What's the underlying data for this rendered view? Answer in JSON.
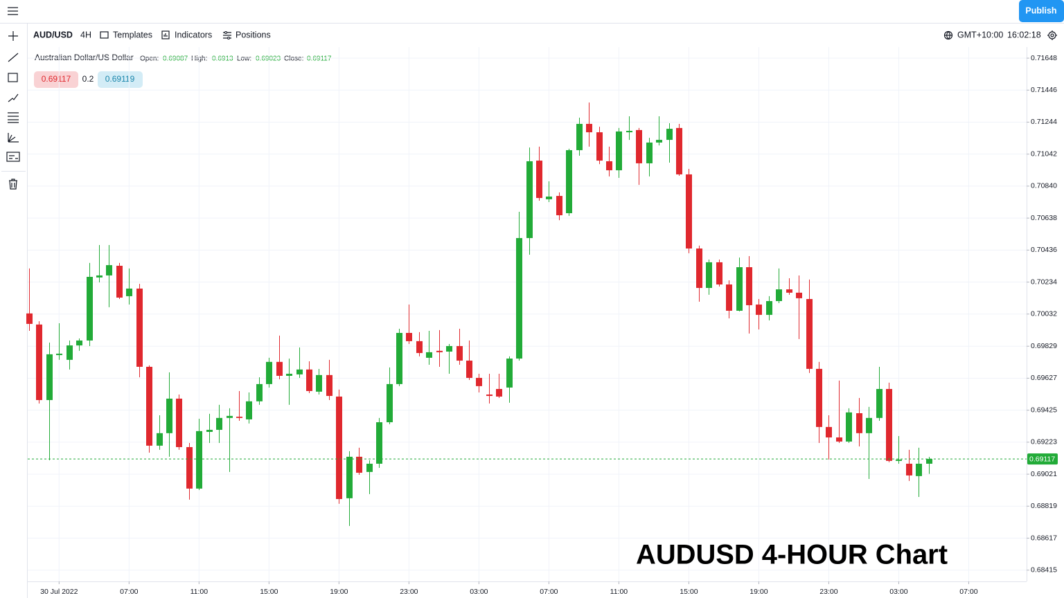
{
  "toolbar": {
    "publish": "Publish",
    "symbol": "AUD/USD",
    "interval": "4H",
    "templates": "Templates",
    "indicators": "Indicators",
    "positions": "Positions",
    "timezone": "GMT+10:00",
    "clock": "16:02:18"
  },
  "chart_data": {
    "type": "candlestick",
    "symbol_name": "Australian Dollar/US Dollar",
    "ohlc_labels": [
      "Open:",
      "High:",
      "Low:",
      "Close:"
    ],
    "bid": 0.69117,
    "spread": 0.2,
    "ask": 0.69119,
    "annotation": "AUDUSD 4-HOUR Chart",
    "up_color": "#22ab38",
    "down_color": "#e0282e",
    "grid": true,
    "ylim": [
      0.68344,
      0.71718
    ],
    "yticks": [
      0.71648,
      0.71446,
      0.71244,
      0.71042,
      {
        "value": 0.7084,
        "label": "0.70840"
      },
      0.70638,
      0.70436,
      0.70234,
      0.70032,
      0.69829,
      0.69627,
      0.69425,
      0.69223,
      0.69021,
      0.68819,
      0.68617,
      0.68415
    ],
    "xlim": [
      -0.14,
      99.79
    ],
    "xticks": [
      {
        "value": 3,
        "label": "30 Jul 2022"
      },
      {
        "value": 10,
        "label": "07:00"
      },
      {
        "value": 17,
        "label": "11:00"
      },
      {
        "value": 24,
        "label": "15:00"
      },
      {
        "value": 31,
        "label": "19:00"
      },
      {
        "value": 38,
        "label": "23:00"
      },
      {
        "value": 45,
        "label": "03:00"
      },
      {
        "value": 52,
        "label": "07:00"
      },
      {
        "value": 59,
        "label": "11:00"
      },
      {
        "value": 66,
        "label": "15:00"
      },
      {
        "value": 73,
        "label": "19:00"
      },
      {
        "value": 80,
        "label": "23:00"
      },
      {
        "value": 87,
        "label": "03:00"
      },
      {
        "value": 94,
        "label": "07:00"
      }
    ],
    "open": [
      0.70036,
      0.69966,
      0.69489,
      0.69773,
      0.69743,
      0.69834,
      0.69865,
      0.70263,
      0.70276,
      0.70337,
      0.70145,
      0.70193,
      0.69699,
      0.69201,
      0.6928,
      0.69498,
      0.69192,
      0.6893,
      0.69288,
      0.69301,
      0.69376,
      0.69384,
      0.69367,
      0.69481,
      0.6959,
      0.6973,
      0.69642,
      0.69651,
      0.69682,
      0.69542,
      0.69647,
      0.69511,
      0.68869,
      0.69131,
      0.69035,
      0.69087,
      0.69349,
      0.6959,
      0.69913,
      0.69861,
      0.69756,
      0.698,
      0.69795,
      0.6983,
      0.69738,
      0.69629,
      0.69524,
      0.69559,
      0.69568,
      0.69751,
      0.70512,
      0.71001,
      0.70757,
      0.70778,
      0.70669,
      0.71067,
      0.71233,
      0.7118,
      0.70997,
      0.7094,
      0.7118,
      0.71194,
      0.70984,
      0.71115,
      0.71132,
      0.71207,
      0.70914,
      0.70446,
      0.70197,
      0.70359,
      0.70219,
      0.70053,
      0.70328,
      0.70092,
      0.70027,
      0.70114,
      0.70188,
      0.70167,
      0.70127,
      0.69686,
      0.69319,
      0.69253,
      0.69227,
      0.69406,
      0.6928,
      0.69376,
      0.69559,
      0.69105,
      0.69087,
      0.69009,
      0.69087
    ],
    "high": [
      0.7032,
      0.69987,
      0.69852,
      0.69974,
      0.69865,
      0.69878,
      0.70355,
      0.70468,
      0.70468,
      0.70355,
      0.7032,
      0.70223,
      0.69708,
      0.69393,
      0.69664,
      0.69524,
      0.69218,
      0.69371,
      0.69402,
      0.69459,
      0.69437,
      0.69546,
      0.69537,
      0.69633,
      0.69756,
      0.69896,
      0.69751,
      0.69821,
      0.69734,
      0.69686,
      0.69743,
      0.69555,
      0.69166,
      0.69188,
      0.69109,
      0.69376,
      0.69695,
      0.69939,
      0.70092,
      0.69918,
      0.69926,
      0.69931,
      0.69843,
      0.69939,
      0.69865,
      0.69655,
      0.69655,
      0.69655,
      0.69765,
      0.70678,
      0.71084,
      0.71089,
      0.7087,
      0.708,
      0.71076,
      0.71272,
      0.71368,
      0.71215,
      0.71089,
      0.71207,
      0.71281,
      0.71207,
      0.71145,
      0.71281,
      0.71237,
      0.71233,
      0.70949,
      0.70464,
      0.70376,
      0.70376,
      0.70245,
      0.70389,
      0.70398,
      0.70127,
      0.70145,
      0.7032,
      0.70258,
      0.70276,
      0.7025,
      0.6973,
      0.69393,
      0.69612,
      0.69437,
      0.69502,
      0.69446,
      0.69699,
      0.69599,
      0.69262,
      0.69175,
      0.69188,
      0.6913
    ],
    "low": [
      0.69926,
      0.69467,
      0.69109,
      0.69743,
      0.69682,
      0.698,
      0.6983,
      0.70232,
      0.70075,
      0.70127,
      0.70092,
      0.69633,
      0.69157,
      0.69175,
      0.69131,
      0.69175,
      0.6886,
      0.68921,
      0.69218,
      0.69218,
      0.69035,
      0.69358,
      0.69341,
      0.69459,
      0.69568,
      0.6962,
      0.69459,
      0.69629,
      0.69533,
      0.69524,
      0.69489,
      0.68834,
      0.68694,
      0.69017,
      0.68895,
      0.69061,
      0.69336,
      0.69577,
      0.69843,
      0.69765,
      0.69712,
      0.69699,
      0.69655,
      0.69712,
      0.69616,
      0.69537,
      0.69467,
      0.69502,
      0.69472,
      0.69738,
      0.70407,
      0.70748,
      0.70739,
      0.70625,
      0.70652,
      0.71032,
      0.71089,
      0.70979,
      0.70901,
      0.70892,
      0.71132,
      0.70848,
      0.70901,
      0.71097,
      0.70988,
      0.70905,
      0.70416,
      0.7011,
      0.70154,
      0.70206,
      0.70005,
      0.70049,
      0.69909,
      0.69935,
      0.69992,
      0.70101,
      0.70154,
      0.69874,
      0.6966,
      0.69218,
      0.69113,
      0.69218,
      0.69218,
      0.69196,
      0.68991,
      0.69358,
      0.69096,
      0.69087,
      0.68978,
      0.68877,
      0.69023
    ],
    "close": [
      0.6997,
      0.69489,
      0.69778,
      0.69782,
      0.69834,
      0.69865,
      0.70267,
      0.70276,
      0.70341,
      0.70136,
      0.70193,
      0.69699,
      0.69201,
      0.6928,
      0.69498,
      0.69192,
      0.6893,
      0.69293,
      0.69301,
      0.69376,
      0.69389,
      0.69376,
      0.69481,
      0.6959,
      0.6973,
      0.69642,
      0.69655,
      0.69682,
      0.69546,
      0.69647,
      0.69515,
      0.68864,
      0.69131,
      0.6903,
      0.69087,
      0.69349,
      0.6959,
      0.69913,
      0.69861,
      0.69786,
      0.69791,
      0.69791,
      0.6983,
      0.69738,
      0.69629,
      0.69577,
      0.69515,
      0.69511,
      0.69751,
      0.70512,
      0.70997,
      0.70765,
      0.70774,
      0.70656,
      0.71067,
      0.71233,
      0.7118,
      0.71001,
      0.7094,
      0.71185,
      0.71189,
      0.70984,
      0.71115,
      0.71132,
      0.71202,
      0.70914,
      0.70446,
      0.70197,
      0.70359,
      0.70219,
      0.70053,
      0.70328,
      0.70088,
      0.70027,
      0.70114,
      0.70188,
      0.70167,
      0.70132,
      0.69686,
      0.69319,
      0.69253,
      0.69227,
      0.69411,
      0.6928,
      0.69376,
      0.69559,
      0.69105,
      0.69113,
      0.69013,
      0.69087,
      0.69117
    ]
  }
}
